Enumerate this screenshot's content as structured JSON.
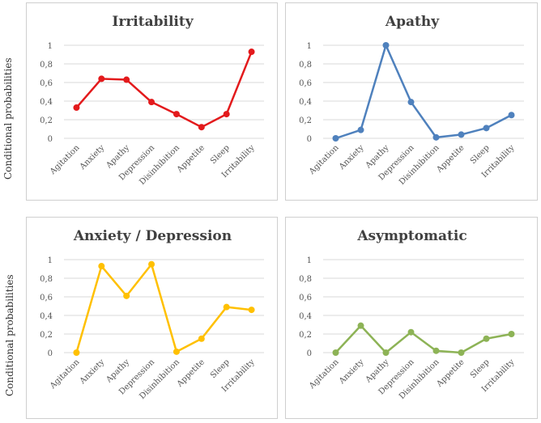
{
  "y_axis_label": "Conditional probabilities",
  "chart_data": [
    {
      "type": "line",
      "title": "Irritability",
      "color": "#e31a1c",
      "categories": [
        "Agitation",
        "Anxiety",
        "Apathy",
        "Depression",
        "Disinhibition",
        "Appetite",
        "Sleep",
        "Irritability"
      ],
      "values": [
        0.33,
        0.64,
        0.63,
        0.39,
        0.26,
        0.12,
        0.26,
        0.93
      ],
      "ylim": [
        0,
        1
      ],
      "yticks": [
        "0",
        "0,2",
        "0,4",
        "0,6",
        "0,8",
        "1"
      ],
      "ylabel": "Conditional probabilities"
    },
    {
      "type": "line",
      "title": "Apathy",
      "color": "#4f81bd",
      "categories": [
        "Agitation",
        "Anxiety",
        "Apathy",
        "Depression",
        "Disinhibition",
        "Appetite",
        "Sleep",
        "Irritability"
      ],
      "values": [
        0.0,
        0.09,
        1.0,
        0.39,
        0.01,
        0.04,
        0.11,
        0.25
      ],
      "ylim": [
        0,
        1
      ],
      "yticks": [
        "0",
        "0,2",
        "0,4",
        "0,6",
        "0,8",
        "1"
      ],
      "ylabel": ""
    },
    {
      "type": "line",
      "title": "Anxiety / Depression",
      "color": "#ffc000",
      "categories": [
        "Agitation",
        "Anxiety",
        "Apathy",
        "Depression",
        "Disinhibition",
        "Appetite",
        "Sleep",
        "Irritability"
      ],
      "values": [
        0.0,
        0.93,
        0.61,
        0.95,
        0.01,
        0.15,
        0.49,
        0.46
      ],
      "ylim": [
        0,
        1
      ],
      "yticks": [
        "0",
        "0,2",
        "0,4",
        "0,6",
        "0,8",
        "1"
      ],
      "ylabel": "Conditional probabilities"
    },
    {
      "type": "line",
      "title": "Asymptomatic",
      "color": "#8db356",
      "categories": [
        "Agitation",
        "Anxiety",
        "Apathy",
        "Depression",
        "Disinhibition",
        "Appetite",
        "Sleep",
        "Irritability"
      ],
      "values": [
        0.0,
        0.29,
        0.0,
        0.22,
        0.02,
        0.0,
        0.15,
        0.2
      ],
      "ylim": [
        0,
        1
      ],
      "yticks": [
        "0",
        "0,2",
        "0,4",
        "0,6",
        "0,8",
        "1"
      ],
      "ylabel": ""
    }
  ]
}
